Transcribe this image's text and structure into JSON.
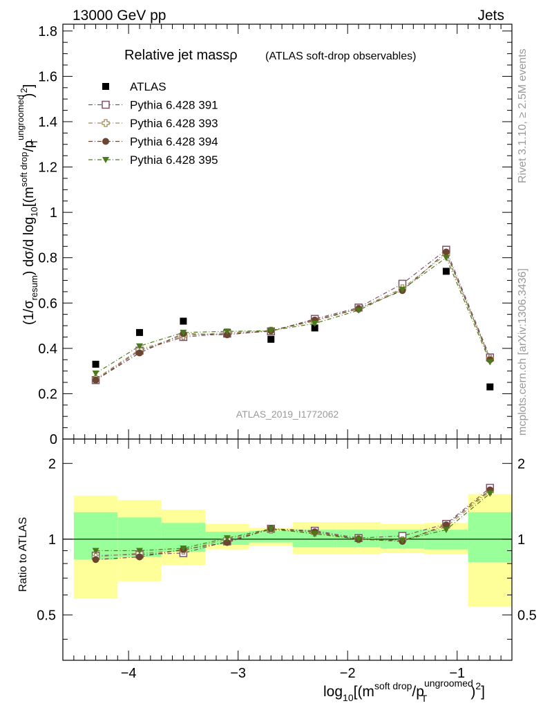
{
  "header": {
    "left": "13000 GeV pp",
    "right": "Jets"
  },
  "side": {
    "rivet": "Rivet 3.1.10, ≥ 2.5M events",
    "mcplots": "mcplots.cern.ch [arXiv:1306.3436]"
  },
  "chart_data": [
    {
      "type": "scatter",
      "title_main": "Relative jet massρ",
      "title_sub": "(ATLAS soft-drop observables)",
      "watermark": "ATLAS_2019_I1772062",
      "ylabel": "(1/σresum) dσ/d log10[(m soft drop/pT ungroomed)2]",
      "xlim": [
        -4.6,
        -0.5
      ],
      "ylim": [
        0,
        1.83
      ],
      "yticks": [
        0,
        0.2,
        0.4,
        0.6,
        0.8,
        1,
        1.2,
        1.4,
        1.6,
        1.8
      ],
      "ytick_labels": [
        "0",
        "0.2",
        "0.4",
        "0.6",
        "0.8",
        "1",
        "1.2",
        "1.4",
        "1.6",
        "1.8"
      ],
      "x": [
        -4.3,
        -3.9,
        -3.5,
        -3.1,
        -2.7,
        -2.3,
        -1.9,
        -1.5,
        -1.1,
        -0.7
      ],
      "series": [
        {
          "name": "ATLAS",
          "color": "#000000",
          "marker": "square-filled",
          "values": [
            0.33,
            0.47,
            0.52,
            0.47,
            0.44,
            0.49,
            0.58,
            0.67,
            0.74,
            0.23
          ]
        },
        {
          "name": "Pythia 6.428 391",
          "color": "#7a5468",
          "marker": "square-open",
          "values": [
            0.26,
            0.39,
            0.45,
            0.465,
            0.475,
            0.53,
            0.58,
            0.685,
            0.835,
            0.36
          ]
        },
        {
          "name": "Pythia 6.428 393",
          "color": "#a08a55",
          "marker": "cross-open",
          "values": [
            0.265,
            0.395,
            0.455,
            0.47,
            0.478,
            0.52,
            0.575,
            0.665,
            0.815,
            0.355
          ]
        },
        {
          "name": "Pythia 6.428 394",
          "color": "#6b4530",
          "marker": "circle-filled",
          "values": [
            0.26,
            0.38,
            0.465,
            0.46,
            0.478,
            0.525,
            0.575,
            0.655,
            0.825,
            0.35
          ]
        },
        {
          "name": "Pythia 6.428 395",
          "color": "#4a7a1a",
          "marker": "triangle-down-filled",
          "values": [
            0.29,
            0.41,
            0.47,
            0.475,
            0.478,
            0.51,
            0.568,
            0.66,
            0.8,
            0.34
          ]
        }
      ]
    },
    {
      "type": "scatter",
      "ylabel": "Ratio to ATLAS",
      "xlabel": "log10[(m soft drop/pT ungroomed)2]",
      "xlim": [
        -4.6,
        -0.5
      ],
      "ylim": [
        0.33,
        2.5
      ],
      "xticks": [
        -4,
        -3,
        -2,
        -1
      ],
      "xtick_labels": [
        "−4",
        "−3",
        "−2",
        "−1"
      ],
      "yticks": [
        0.5,
        1,
        2
      ],
      "ytick_labels": [
        "0.5",
        "1",
        "2"
      ],
      "bins": [
        {
          "lo": -4.5,
          "hi": -4.1,
          "green": [
            0.83,
            1.28
          ],
          "yellow": [
            0.58,
            1.49
          ]
        },
        {
          "lo": -4.1,
          "hi": -3.7,
          "green": [
            0.85,
            1.22
          ],
          "yellow": [
            0.68,
            1.43
          ]
        },
        {
          "lo": -3.7,
          "hi": -3.3,
          "green": [
            0.89,
            1.16
          ],
          "yellow": [
            0.79,
            1.31
          ]
        },
        {
          "lo": -3.3,
          "hi": -2.9,
          "green": [
            0.95,
            1.07
          ],
          "yellow": [
            0.91,
            1.15
          ]
        },
        {
          "lo": -2.9,
          "hi": -2.5,
          "green": [
            0.97,
            1.08
          ],
          "yellow": [
            0.94,
            1.11
          ]
        },
        {
          "lo": -2.5,
          "hi": -2.1,
          "green": [
            0.93,
            1.09
          ],
          "yellow": [
            0.87,
            1.17
          ]
        },
        {
          "lo": -2.1,
          "hi": -1.7,
          "green": [
            0.93,
            1.09
          ],
          "yellow": [
            0.87,
            1.17
          ]
        },
        {
          "lo": -1.7,
          "hi": -1.3,
          "green": [
            0.92,
            1.09
          ],
          "yellow": [
            0.88,
            1.15
          ]
        },
        {
          "lo": -1.3,
          "hi": -0.9,
          "green": [
            0.91,
            1.09
          ],
          "yellow": [
            0.87,
            1.16
          ]
        },
        {
          "lo": -0.9,
          "hi": -0.5,
          "green": [
            0.81,
            1.28
          ],
          "yellow": [
            0.54,
            1.51
          ]
        }
      ],
      "x": [
        -4.3,
        -3.9,
        -3.5,
        -3.1,
        -2.7,
        -2.3,
        -1.9,
        -1.5,
        -1.1,
        -0.7
      ],
      "series": [
        {
          "name": "Pythia 6.428 391",
          "color": "#7a5468",
          "marker": "square-open",
          "values": [
            0.86,
            0.87,
            0.88,
            0.98,
            1.1,
            1.08,
            1.01,
            1.03,
            1.15,
            1.6
          ]
        },
        {
          "name": "Pythia 6.428 393",
          "color": "#a08a55",
          "marker": "cross-open",
          "values": [
            0.85,
            0.88,
            0.9,
            1.0,
            1.09,
            1.06,
            1.0,
            0.99,
            1.12,
            1.55
          ]
        },
        {
          "name": "Pythia 6.428 394",
          "color": "#6b4530",
          "marker": "circle-filled",
          "values": [
            0.83,
            0.85,
            0.91,
            0.97,
            1.1,
            1.07,
            1.0,
            0.98,
            1.14,
            1.57
          ]
        },
        {
          "name": "Pythia 6.428 395",
          "color": "#4a7a1a",
          "marker": "triangle-down-filled",
          "values": [
            0.9,
            0.9,
            0.92,
            1.01,
            1.1,
            1.05,
            1.0,
            0.99,
            1.09,
            1.52
          ]
        }
      ]
    }
  ]
}
